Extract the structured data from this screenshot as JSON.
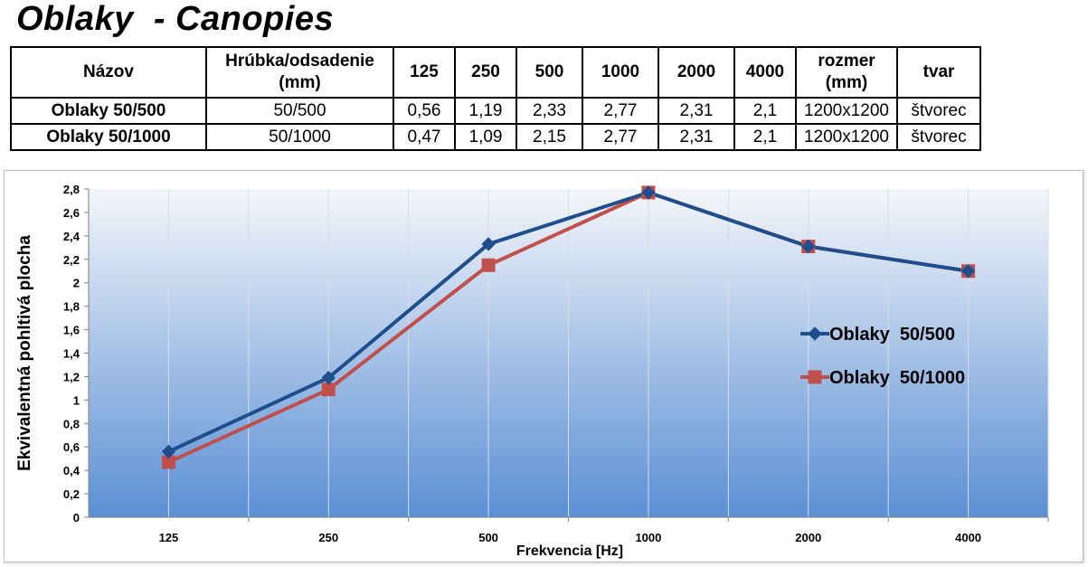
{
  "title": "Oblaky  - Canopies",
  "table": {
    "headers": [
      "Názov",
      "Hrúbka/odsadenie (mm)",
      "125",
      "250",
      "500",
      "1000",
      "2000",
      "4000",
      "rozmer (mm)",
      "tvar"
    ],
    "rows": [
      [
        "Oblaky  50/500",
        "50/500",
        "0,56",
        "1,19",
        "2,33",
        "2,77",
        "2,31",
        "2,1",
        "1200x1200",
        "štvorec"
      ],
      [
        "Oblaky  50/1000",
        "50/1000",
        "0,47",
        "1,09",
        "2,15",
        "2,77",
        "2,31",
        "2,1",
        "1200x1200",
        "štvorec"
      ]
    ]
  },
  "chart_data": {
    "type": "line",
    "categories": [
      "125",
      "250",
      "500",
      "1000",
      "2000",
      "4000"
    ],
    "series": [
      {
        "name": "Oblaky  50/500",
        "values": [
          0.56,
          1.19,
          2.33,
          2.77,
          2.31,
          2.1
        ],
        "color": "#1f4e8c",
        "marker": "diamond"
      },
      {
        "name": "Oblaky  50/1000",
        "values": [
          0.47,
          1.09,
          2.15,
          2.77,
          2.31,
          2.1
        ],
        "color": "#c0504d",
        "marker": "square"
      }
    ],
    "title": "",
    "xlabel": "Frekvencia [Hz]",
    "ylabel": "Ekvivalentná pohltivá plocha",
    "ylim": [
      0,
      2.8
    ],
    "ytick_step": 0.2,
    "yticks": [
      "0",
      "0,2",
      "0,4",
      "0,6",
      "0,8",
      "1",
      "1,2",
      "1,4",
      "1,6",
      "1,8",
      "2",
      "2,2",
      "2,4",
      "2,6",
      "2,8"
    ],
    "grid": "vertical",
    "legend": "right",
    "background": {
      "top": "#f4f6fa",
      "bottom": "#5a8fd4"
    }
  }
}
